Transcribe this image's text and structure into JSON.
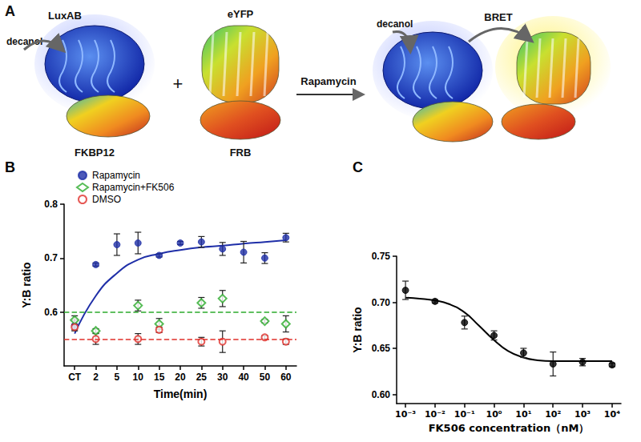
{
  "diagram": {
    "panel_label": "A",
    "left": {
      "luciferase": "LuxAB",
      "binding_protein": "FKBP12",
      "substrate": "decanol"
    },
    "plus": "+",
    "right_partner": {
      "fluorescent_protein": "eYFP",
      "binding_protein": "FRB"
    },
    "arrow_label": "Rapamycin",
    "complex": {
      "substrate": "decanol",
      "transfer": "BRET"
    }
  },
  "chart_data": [
    {
      "panel_label": "B",
      "type": "scatter",
      "x_label": "Time(min)",
      "y_label": "Y:B ratio",
      "categories": [
        "CT",
        "2",
        "5",
        "10",
        "15",
        "20",
        "25",
        "30",
        "40",
        "50",
        "60"
      ],
      "ylim": [
        0.5,
        0.8
      ],
      "yticks": [
        0.6,
        0.7,
        0.8
      ],
      "legend": "top-left",
      "series": [
        {
          "name": "Rapamycin",
          "color": "#1f2fa8",
          "marker": "circle",
          "values": [
            0.575,
            0.688,
            0.725,
            0.728,
            0.705,
            0.728,
            0.73,
            0.717,
            0.711,
            0.7,
            0.738
          ],
          "errors": [
            0.01,
            0.003,
            0.02,
            0.02,
            0.003,
            0.003,
            0.01,
            0.012,
            0.02,
            0.01,
            0.008
          ],
          "fit": [
            0.56,
            0.63,
            0.672,
            0.697,
            0.708,
            0.715,
            0.72,
            0.723,
            0.727,
            0.73,
            0.733
          ]
        },
        {
          "name": "Rapamycin+FK506",
          "color": "#2cab2c",
          "marker": "diamond",
          "line_style": "dashed",
          "values": [
            0.585,
            0.565,
            null,
            0.612,
            0.578,
            null,
            0.617,
            0.625,
            null,
            0.583,
            0.578
          ],
          "errors": [
            0.008,
            0.004,
            null,
            0.01,
            0.01,
            null,
            0.01,
            0.015,
            null,
            0.003,
            0.015
          ],
          "reference_line": 0.597
        },
        {
          "name": "DMSO",
          "color": "#e0302a",
          "marker": "open_circle",
          "line_style": "dashed",
          "values": [
            0.572,
            0.55,
            null,
            0.55,
            0.567,
            null,
            0.545,
            0.545,
            null,
            0.553,
            0.545
          ],
          "errors": [
            0.005,
            0.01,
            null,
            0.01,
            0.005,
            null,
            0.008,
            0.02,
            null,
            0.003,
            0.005
          ],
          "reference_line": 0.552
        }
      ]
    },
    {
      "panel_label": "C",
      "type": "scatter",
      "log": "x",
      "x_label": "FK506 concentration（nM）",
      "y_label": "Y:B ratio",
      "color": "#000000",
      "marker": "circle",
      "x": [
        0.001,
        0.01,
        0.1,
        1,
        10,
        100,
        1000,
        10000
      ],
      "values": [
        0.713,
        0.701,
        0.678,
        0.664,
        0.645,
        0.633,
        0.635,
        0.632
      ],
      "errors": [
        0.01,
        0.002,
        0.007,
        0.005,
        0.005,
        0.013,
        0.004,
        0.002
      ],
      "fit": {
        "x": [
          0.001,
          0.003,
          0.01,
          0.03,
          0.1,
          0.3,
          1,
          3,
          10,
          30,
          100,
          1000,
          10000
        ],
        "values": [
          0.705,
          0.704,
          0.702,
          0.698,
          0.689,
          0.675,
          0.659,
          0.647,
          0.64,
          0.637,
          0.636,
          0.636,
          0.636
        ]
      },
      "xlim": [
        0.0005,
        20000
      ],
      "xticks": [
        {
          "value": 0.001,
          "label": "10⁻³"
        },
        {
          "value": 0.01,
          "label": "10⁻²"
        },
        {
          "value": 0.1,
          "label": "10⁻¹"
        },
        {
          "value": 1,
          "label": "10⁰"
        },
        {
          "value": 10,
          "label": "10¹"
        },
        {
          "value": 100,
          "label": "10²"
        },
        {
          "value": 1000,
          "label": "10³"
        },
        {
          "value": 10000,
          "label": "10⁴"
        }
      ],
      "ylim": [
        0.59,
        0.75
      ],
      "yticks": [
        {
          "value": 0.6,
          "label": "0.60"
        },
        {
          "value": 0.65,
          "label": "0.65"
        },
        {
          "value": 0.7,
          "label": "0.70"
        },
        {
          "value": 0.75,
          "label": "0.75"
        }
      ]
    }
  ]
}
